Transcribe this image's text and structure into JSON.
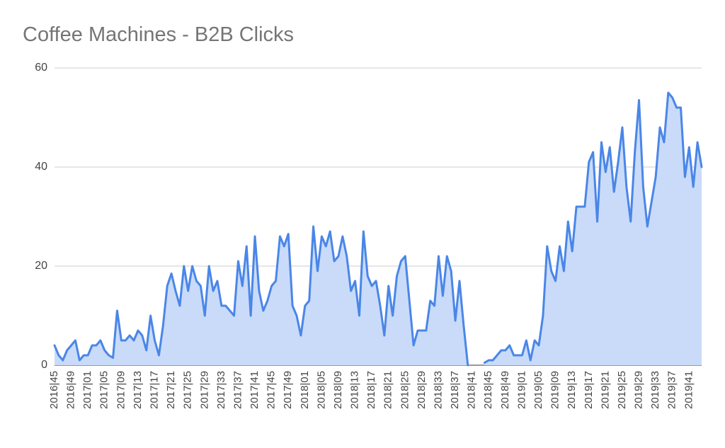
{
  "chart_data": {
    "type": "area",
    "title": "Coffee Machines - B2B Clicks",
    "categories": [
      "2016|45",
      null,
      null,
      null,
      "2016|49",
      null,
      null,
      null,
      "2017|01",
      null,
      null,
      null,
      "2017|05",
      null,
      null,
      null,
      "2017|09",
      null,
      null,
      null,
      "2017|13",
      null,
      null,
      null,
      "2017|17",
      null,
      null,
      null,
      "2017|21",
      null,
      null,
      null,
      "2017|25",
      null,
      null,
      null,
      "2017|29",
      null,
      null,
      null,
      "2017|33",
      null,
      null,
      null,
      "2017|37",
      null,
      null,
      null,
      "2017|41",
      null,
      null,
      null,
      "2017|45",
      null,
      null,
      null,
      "2017|49",
      null,
      null,
      null,
      "2018|01",
      null,
      null,
      null,
      "2018|05",
      null,
      null,
      null,
      "2018|09",
      null,
      null,
      null,
      "2018|13",
      null,
      null,
      null,
      "2018|17",
      null,
      null,
      null,
      "2018|21",
      null,
      null,
      null,
      "2018|25",
      null,
      null,
      null,
      "2018|29",
      null,
      null,
      null,
      "2018|33",
      null,
      null,
      null,
      "2018|37",
      null,
      null,
      null,
      "2018|41",
      null,
      null,
      null,
      "2018|45",
      null,
      null,
      null,
      "2018|49",
      null,
      null,
      null,
      "2019|01",
      null,
      null,
      null,
      "2019|05",
      null,
      null,
      null,
      "2019|09",
      null,
      null,
      null,
      "2019|13",
      null,
      null,
      null,
      "2019|17",
      null,
      null,
      null,
      "2019|21",
      null,
      null,
      null,
      "2019|25",
      null,
      null,
      null,
      "2019|29",
      null,
      null,
      null,
      "2019|33",
      null,
      null,
      null,
      "2019|37",
      null,
      null,
      null,
      "2019|41",
      null,
      null,
      null
    ],
    "series": [
      {
        "name": "B2B Clicks",
        "color": "#4a86e8",
        "fill": "#c9dbf8",
        "values": [
          4,
          2,
          1,
          3,
          4,
          5,
          1,
          2,
          2,
          4,
          4,
          5,
          3,
          2,
          1.5,
          11,
          5,
          5,
          6,
          5,
          7,
          6,
          3,
          10,
          5,
          2,
          8,
          16,
          18.5,
          15,
          12,
          20,
          15,
          20,
          17,
          16,
          10,
          20,
          15,
          17,
          12,
          12,
          11,
          10,
          21,
          16,
          24,
          10,
          26,
          15,
          11,
          13,
          16,
          17,
          26,
          24,
          26.5,
          12,
          10,
          6,
          12,
          13,
          28,
          19,
          26,
          24,
          27,
          21,
          22,
          26,
          22,
          15,
          17,
          10,
          27,
          18,
          16,
          17,
          12,
          6,
          16,
          10,
          18,
          21,
          22,
          13,
          4,
          7,
          7,
          7,
          13,
          12,
          22,
          14,
          22,
          19,
          9,
          17,
          8,
          0,
          null,
          null,
          null,
          0.5,
          1,
          1,
          2,
          3,
          3,
          4,
          2,
          2,
          2,
          5,
          1,
          5,
          4,
          10,
          24,
          19,
          17,
          24,
          19,
          29,
          23,
          32,
          32,
          32,
          41,
          43,
          29,
          45,
          39,
          44,
          35,
          41,
          48,
          36,
          29,
          43,
          53.5,
          36,
          28,
          33,
          38,
          48,
          45,
          55,
          54,
          52,
          52,
          38,
          44,
          36,
          45,
          40
        ]
      }
    ],
    "ylim": [
      0,
      60
    ],
    "yticks": [
      0,
      20,
      40,
      60
    ],
    "grid": true
  }
}
